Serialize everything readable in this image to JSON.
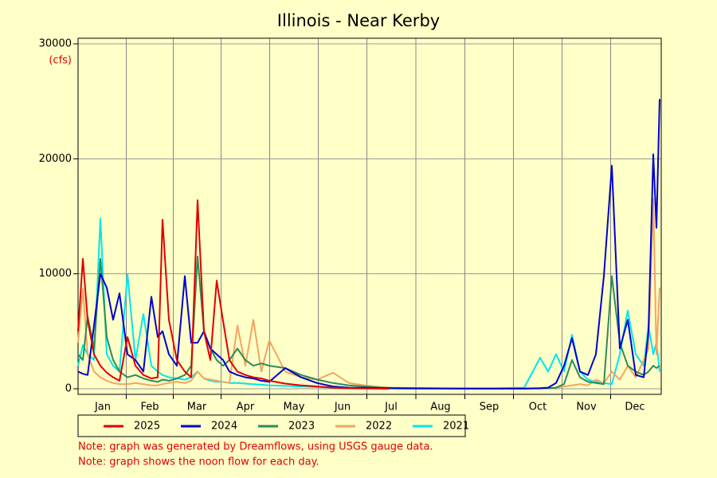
{
  "chart_data": {
    "type": "line",
    "title": "Illinois - Near Kerby",
    "y_unit": "(cfs)",
    "notes": [
      "Note: graph was generated by Dreamflows, using USGS gauge data.",
      "Note: graph shows the noon flow for each day."
    ],
    "x": [
      0,
      3,
      6,
      10,
      14,
      18,
      22,
      26,
      31,
      36,
      41,
      46,
      50,
      53,
      57,
      62,
      67,
      71,
      75,
      79,
      83,
      87,
      91,
      95,
      100,
      105,
      110,
      115,
      120,
      130,
      140,
      150,
      160,
      170,
      180,
      190,
      195,
      200,
      220,
      240,
      260,
      280,
      290,
      295,
      300,
      305,
      310,
      315,
      320,
      325,
      330,
      335,
      340,
      345,
      350,
      355,
      358,
      361,
      363,
      365
    ],
    "xlim": [
      0,
      366
    ],
    "xticks": [
      {
        "value": 15.5,
        "label": "Jan"
      },
      {
        "value": 45,
        "label": "Feb"
      },
      {
        "value": 74.5,
        "label": "Mar"
      },
      {
        "value": 105,
        "label": "Apr"
      },
      {
        "value": 135.5,
        "label": "May"
      },
      {
        "value": 166,
        "label": "Jun"
      },
      {
        "value": 196.5,
        "label": "Jul"
      },
      {
        "value": 227.5,
        "label": "Aug"
      },
      {
        "value": 258,
        "label": "Sep"
      },
      {
        "value": 288.5,
        "label": "Oct"
      },
      {
        "value": 319,
        "label": "Nov"
      },
      {
        "value": 349.5,
        "label": "Dec"
      }
    ],
    "ylim": [
      0,
      30000
    ],
    "yticks": [
      0,
      10000,
      20000,
      30000
    ],
    "grid": true,
    "series": [
      {
        "name": "2025",
        "color": "#e00000",
        "values": [
          5000,
          11300,
          6000,
          3000,
          2000,
          1400,
          1000,
          700,
          4500,
          2000,
          1200,
          900,
          1000,
          14700,
          6000,
          2500,
          1500,
          1000,
          16400,
          5000,
          2500,
          9400,
          5900,
          2500,
          1500,
          1200,
          1000,
          900,
          700,
          450,
          300,
          200,
          100,
          50,
          30,
          20,
          0,
          null,
          null,
          null,
          null,
          null,
          null,
          null,
          null,
          null,
          null,
          null,
          null,
          null,
          null,
          null,
          null,
          null,
          null,
          null,
          null,
          null,
          null,
          null
        ]
      },
      {
        "name": "2024",
        "color": "#0000d0",
        "values": [
          1500,
          1300,
          1200,
          5500,
          10000,
          8800,
          6000,
          8300,
          3000,
          2500,
          1500,
          8000,
          4500,
          5000,
          3000,
          2000,
          9800,
          4000,
          4000,
          5000,
          3500,
          3000,
          2500,
          1500,
          1200,
          1000,
          900,
          700,
          600,
          1800,
          1000,
          500,
          200,
          100,
          80,
          60,
          50,
          40,
          30,
          20,
          20,
          20,
          50,
          100,
          500,
          2000,
          4400,
          1500,
          1200,
          3000,
          9800,
          19400,
          3500,
          6000,
          1200,
          1000,
          5000,
          20400,
          14000,
          25200
        ]
      },
      {
        "name": "2023",
        "color": "#2e8b57",
        "values": [
          3000,
          2500,
          6300,
          3500,
          11300,
          4500,
          2500,
          1500,
          1000,
          1200,
          900,
          700,
          600,
          800,
          700,
          900,
          1200,
          2000,
          11500,
          5000,
          3500,
          2500,
          2000,
          2500,
          3500,
          2500,
          2000,
          2200,
          2000,
          1800,
          1200,
          800,
          500,
          300,
          200,
          100,
          80,
          60,
          40,
          30,
          20,
          20,
          30,
          50,
          100,
          400,
          2500,
          1000,
          600,
          500,
          400,
          9800,
          4000,
          2000,
          1500,
          1200,
          1500,
          2000,
          1800,
          2000
        ]
      },
      {
        "name": "2022",
        "color": "#f4a460",
        "values": [
          4000,
          8700,
          3000,
          1500,
          1000,
          700,
          500,
          400,
          400,
          500,
          400,
          300,
          300,
          400,
          500,
          600,
          500,
          700,
          1500,
          900,
          800,
          700,
          600,
          500,
          5500,
          2000,
          6000,
          1500,
          4200,
          1500,
          1000,
          800,
          1400,
          500,
          300,
          150,
          100,
          80,
          50,
          30,
          20,
          20,
          30,
          50,
          100,
          200,
          300,
          400,
          300,
          800,
          500,
          1500,
          800,
          2000,
          1000,
          2500,
          3500,
          16500,
          3000,
          8800
        ]
      },
      {
        "name": "2021",
        "color": "#00e5ee",
        "values": [
          2000,
          3800,
          3000,
          2500,
          14800,
          3000,
          2000,
          1500,
          10000,
          2500,
          6500,
          2000,
          1500,
          1200,
          1000,
          900,
          800,
          1000,
          1500,
          900,
          700,
          600,
          600,
          500,
          500,
          450,
          400,
          350,
          300,
          250,
          200,
          150,
          100,
          60,
          40,
          30,
          25,
          20,
          20,
          20,
          30,
          100,
          2700,
          1500,
          3000,
          1500,
          4700,
          1500,
          800,
          600,
          500,
          400,
          3000,
          6800,
          3000,
          2000,
          5500,
          3000,
          4000,
          1500
        ]
      }
    ]
  }
}
